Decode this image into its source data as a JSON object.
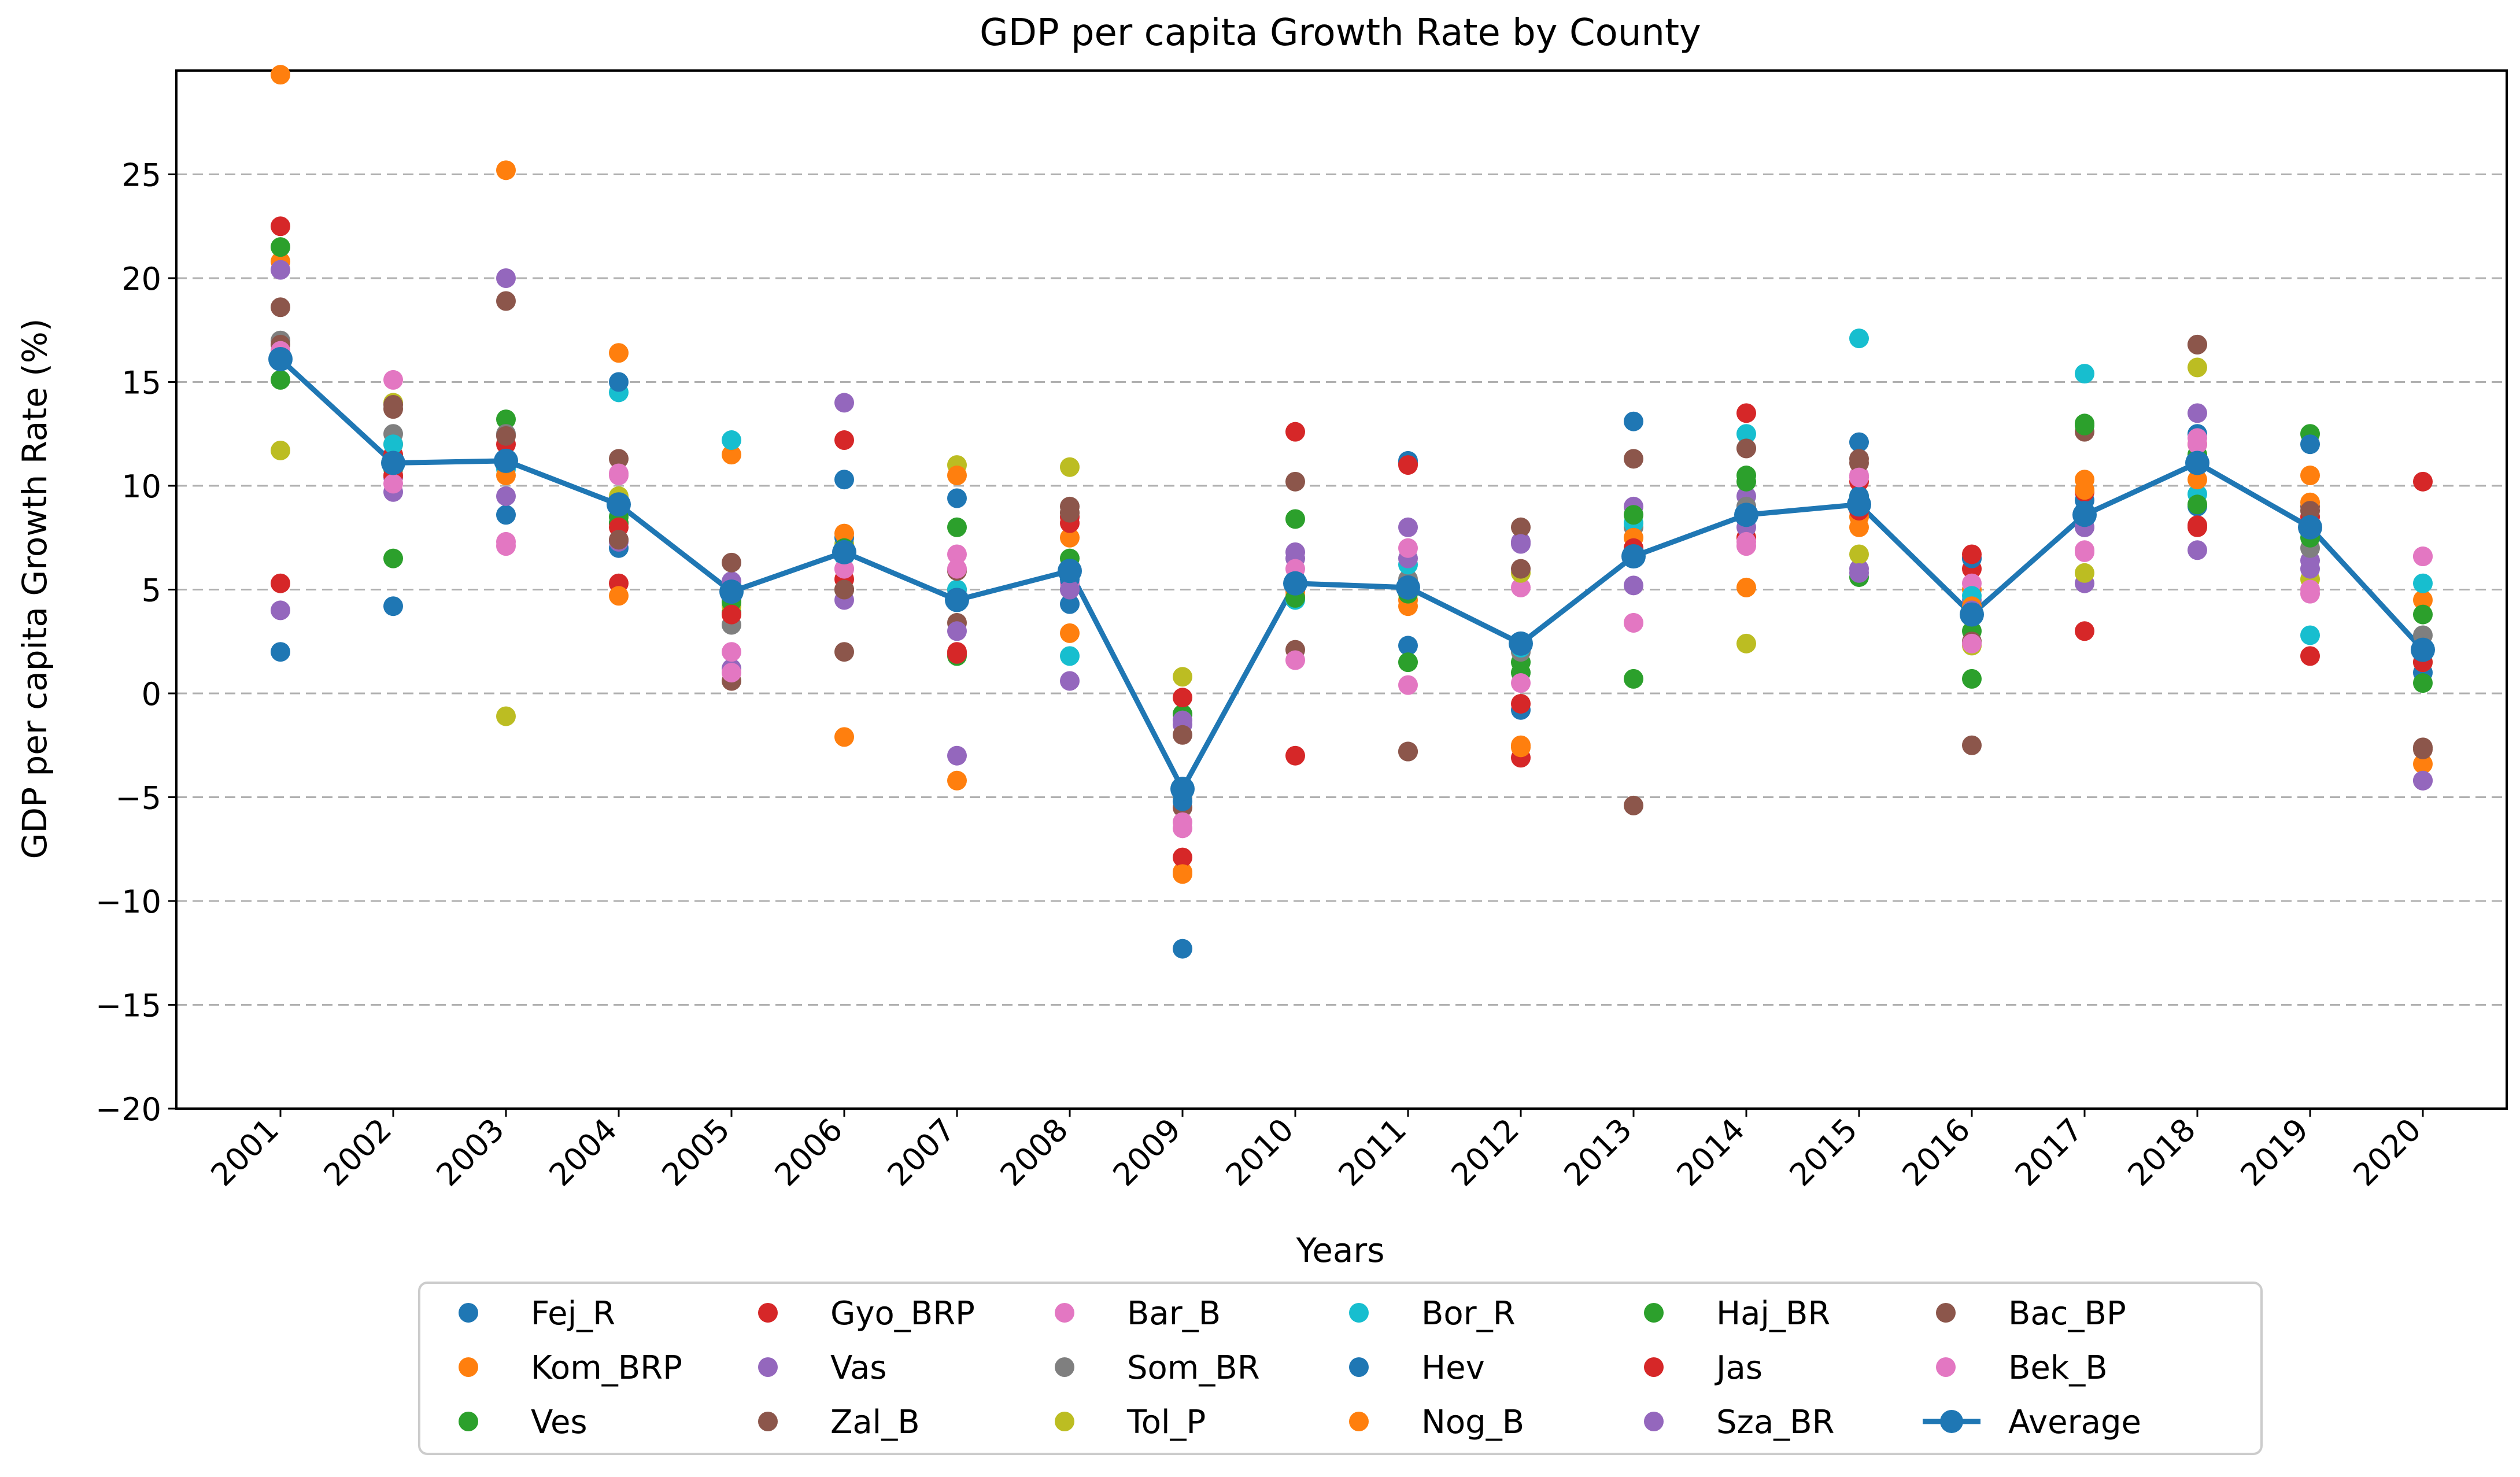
{
  "chart_data": {
    "type": "scatter",
    "title": "GDP per capita Growth Rate by County",
    "xlabel": "Years",
    "ylabel": "GDP per capita Growth Rate (%)",
    "ylim": [
      -20,
      30
    ],
    "yticks": [
      -20,
      -15,
      -10,
      -5,
      0,
      5,
      10,
      15,
      20,
      25
    ],
    "categories": [
      "2001",
      "2002",
      "2003",
      "2004",
      "2005",
      "2006",
      "2007",
      "2008",
      "2009",
      "2010",
      "2011",
      "2012",
      "2013",
      "2014",
      "2015",
      "2016",
      "2017",
      "2018",
      "2019",
      "2020"
    ],
    "grid": "horizontal dashed",
    "legend_position": "bottom-center",
    "series": [
      {
        "name": "Fej_R",
        "color": "#1f77b4",
        "values": [
          2.0,
          4.2,
          8.6,
          7.0,
          4.5,
          10.3,
          9.4,
          4.3,
          -12.3,
          5.2,
          2.3,
          -0.8,
          13.1,
          9.0,
          12.1,
          6.5,
          9.3,
          9.0,
          8.0,
          1.0
        ]
      },
      {
        "name": "Kom_BRP",
        "color": "#ff7f0e",
        "values": [
          29.8,
          12.0,
          25.2,
          16.4,
          11.5,
          -2.1,
          -4.2,
          2.9,
          -8.6,
          4.7,
          4.2,
          -2.5,
          7.5,
          5.1,
          8.0,
          5.0,
          10.3,
          12.0,
          10.5,
          4.5
        ]
      },
      {
        "name": "Ves",
        "color": "#2ca02c",
        "values": [
          15.1,
          6.5,
          13.2,
          8.5,
          3.9,
          5.0,
          8.0,
          6.5,
          -1.0,
          8.4,
          1.5,
          1.5,
          0.7,
          10.5,
          9.5,
          0.7,
          13.0,
          11.5,
          12.5,
          3.8
        ]
      },
      {
        "name": "Gyo_BRP",
        "color": "#d62728",
        "values": [
          22.5,
          11.5,
          11.0,
          5.3,
          4.6,
          12.2,
          2.0,
          8.5,
          -7.9,
          12.6,
          11.1,
          -3.1,
          7.0,
          13.5,
          10.2,
          6.0,
          9.7,
          8.0,
          1.8,
          10.2
        ]
      },
      {
        "name": "Vas",
        "color": "#9467bd",
        "values": [
          4.0,
          10.4,
          20.0,
          7.3,
          1.2,
          14.0,
          -3.0,
          0.6,
          -1.5,
          6.8,
          8.0,
          7.3,
          9.0,
          9.5,
          6.0,
          4.5,
          5.3,
          13.5,
          6.4,
          -4.2
        ]
      },
      {
        "name": "Zal_B",
        "color": "#8c564b",
        "values": [
          18.6,
          13.7,
          18.9,
          11.3,
          0.6,
          2.0,
          3.4,
          9.0,
          -5.5,
          2.1,
          -2.8,
          8.0,
          -5.4,
          11.8,
          11.3,
          -2.5,
          12.6,
          16.8,
          9.0,
          -2.6
        ]
      },
      {
        "name": "Bar_B",
        "color": "#e377c2",
        "values": [
          16.0,
          15.1,
          7.1,
          10.6,
          2.0,
          6.0,
          6.7,
          5.3,
          -6.5,
          1.6,
          0.4,
          5.1,
          3.4,
          7.1,
          10.5,
          5.3,
          6.8,
          12.0,
          4.8,
          6.6
        ]
      },
      {
        "name": "Som_BR",
        "color": "#7f7f7f",
        "values": [
          17.0,
          12.5,
          12.5,
          8.2,
          3.3,
          5.0,
          5.0,
          5.0,
          -5.0,
          5.5,
          5.5,
          2.0,
          8.0,
          9.0,
          9.0,
          4.0,
          8.0,
          11.0,
          7.0,
          2.8
        ]
      },
      {
        "name": "Tol_P",
        "color": "#bcbd22",
        "values": [
          11.7,
          14.0,
          -1.1,
          9.5,
          4.2,
          7.2,
          11.0,
          10.9,
          0.8,
          5.0,
          5.2,
          5.8,
          8.2,
          2.4,
          6.7,
          2.3,
          5.8,
          15.7,
          5.5,
          1.5
        ]
      },
      {
        "name": "Bor_R",
        "color": "#17becf",
        "values": [
          16.3,
          12.0,
          10.8,
          14.5,
          12.2,
          6.6,
          5.0,
          1.8,
          -4.5,
          4.5,
          6.2,
          2.2,
          8.2,
          12.5,
          17.1,
          4.7,
          15.4,
          9.6,
          2.8,
          5.3
        ]
      },
      {
        "name": "Hev",
        "color": "#1f77b4",
        "values": [
          16.0,
          11.0,
          11.0,
          15.0,
          4.8,
          7.5,
          4.5,
          5.5,
          -5.2,
          5.5,
          11.2,
          2.5,
          6.5,
          8.5,
          9.5,
          6.5,
          8.8,
          12.5,
          12.0,
          2.0
        ]
      },
      {
        "name": "Nog_B",
        "color": "#ff7f0e",
        "values": [
          20.8,
          11.2,
          10.5,
          4.7,
          4.9,
          7.7,
          10.5,
          7.5,
          -8.7,
          4.9,
          4.5,
          -2.6,
          7.5,
          7.5,
          8.5,
          4.2,
          9.8,
          10.3,
          9.2,
          -3.4
        ]
      },
      {
        "name": "Haj_BR",
        "color": "#2ca02c",
        "values": [
          21.5,
          10.8,
          11.3,
          8.2,
          4.4,
          7.0,
          1.8,
          6.0,
          -1.0,
          4.6,
          4.8,
          1.0,
          8.6,
          10.2,
          5.6,
          3.0,
          12.9,
          9.1,
          7.5,
          0.5
        ]
      },
      {
        "name": "Jas",
        "color": "#d62728",
        "values": [
          5.3,
          10.5,
          12.0,
          8.0,
          3.8,
          5.5,
          1.9,
          8.2,
          -0.2,
          -3.0,
          11.0,
          -0.5,
          7.0,
          7.5,
          8.8,
          6.7,
          3.0,
          8.1,
          8.5,
          1.5
        ]
      },
      {
        "name": "Sza_BR",
        "color": "#9467bd",
        "values": [
          20.4,
          9.7,
          9.5,
          7.4,
          5.4,
          4.5,
          3.0,
          5.0,
          -1.3,
          6.5,
          6.5,
          7.2,
          5.2,
          8.0,
          5.8,
          4.0,
          8.0,
          6.9,
          6.0,
          -4.2
        ]
      },
      {
        "name": "Bac_BP",
        "color": "#8c564b",
        "values": [
          16.8,
          13.9,
          12.4,
          7.4,
          6.3,
          5.0,
          5.9,
          8.7,
          -2.0,
          10.2,
          -2.8,
          6.0,
          11.3,
          11.8,
          11.1,
          2.5,
          8.5,
          16.8,
          8.8,
          -2.7
        ]
      },
      {
        "name": "Bek_B",
        "color": "#e377c2",
        "values": [
          16.5,
          10.1,
          7.3,
          10.5,
          1.0,
          6.0,
          6.0,
          5.8,
          -6.2,
          6.0,
          7.0,
          0.5,
          3.4,
          7.3,
          10.4,
          2.4,
          6.9,
          12.3,
          5.0,
          6.6
        ]
      }
    ],
    "average": {
      "name": "Average",
      "color": "#1f77b4",
      "values": [
        16.1,
        11.1,
        11.2,
        9.1,
        4.9,
        6.8,
        4.5,
        5.9,
        -4.6,
        5.3,
        5.1,
        2.4,
        6.6,
        8.6,
        9.1,
        3.8,
        8.6,
        11.1,
        8.0,
        2.1
      ]
    }
  }
}
